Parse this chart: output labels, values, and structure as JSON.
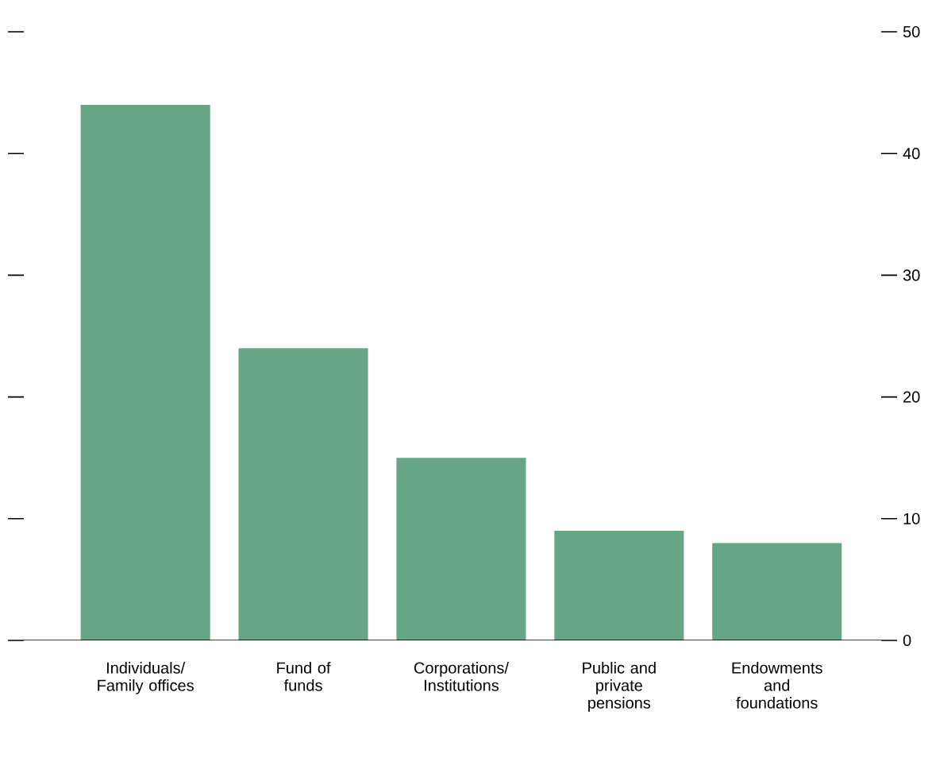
{
  "chart_data": {
    "type": "bar",
    "categories": [
      "Individuals/ Family offices",
      "Fund of funds",
      "Corporations/ Institutions",
      "Public and private pensions",
      "Endowments and foundations"
    ],
    "values": [
      44,
      24,
      15,
      9,
      8
    ],
    "color": "#66a684",
    "ylim": [
      0,
      50
    ],
    "yticks": [
      0,
      10,
      20,
      30,
      40,
      50
    ],
    "grid": false
  }
}
